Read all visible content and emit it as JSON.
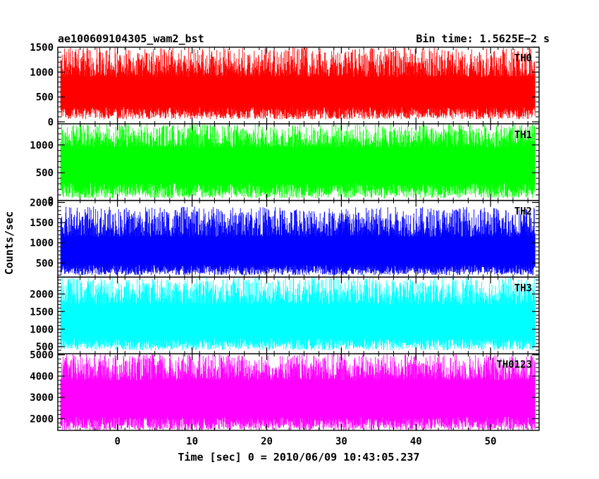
{
  "header": {
    "title": "ae100609104305_wam2_bst",
    "bin_time": "Bin time: 1.5625E−2 s"
  },
  "chart_data": {
    "type": "line",
    "xlabel": "Time [sec] 0 = 2010/06/09 10:43:05.237",
    "ylabel": "Counts/sec",
    "xlim": [
      -8,
      56.5
    ],
    "x_start": -7.6,
    "x_end": 56.0,
    "x_ticks": [
      0,
      10,
      20,
      30,
      40,
      50
    ],
    "panels": [
      {
        "name": "TH0",
        "color": "#ff0000",
        "ylim": [
          -40,
          1500
        ],
        "y_ticks": [
          0,
          500,
          1000,
          1500
        ],
        "low_range": [
          50,
          300
        ],
        "high_range": [
          900,
          1500
        ]
      },
      {
        "name": "TH1",
        "color": "#00ff00",
        "ylim": [
          0,
          1380
        ],
        "y_ticks": [
          0,
          500,
          1000
        ],
        "low_range": [
          40,
          320
        ],
        "high_range": [
          950,
          1380
        ]
      },
      {
        "name": "TH2",
        "color": "#0000ff",
        "ylim": [
          150,
          2050
        ],
        "y_ticks": [
          500,
          1000,
          1500,
          2000
        ],
        "low_range": [
          200,
          450
        ],
        "high_range": [
          1150,
          1900
        ]
      },
      {
        "name": "TH3",
        "color": "#00ffff",
        "ylim": [
          300,
          2480
        ],
        "y_ticks": [
          500,
          1000,
          1500,
          2000
        ],
        "low_range": [
          400,
          750
        ],
        "high_range": [
          1700,
          2480
        ]
      },
      {
        "name": "TH0123",
        "color": "#ff00ff",
        "ylim": [
          1450,
          5050
        ],
        "y_ticks": [
          2000,
          3000,
          4000,
          5000
        ],
        "low_range": [
          1450,
          2100
        ],
        "high_range": [
          3800,
          5050
        ]
      }
    ]
  }
}
